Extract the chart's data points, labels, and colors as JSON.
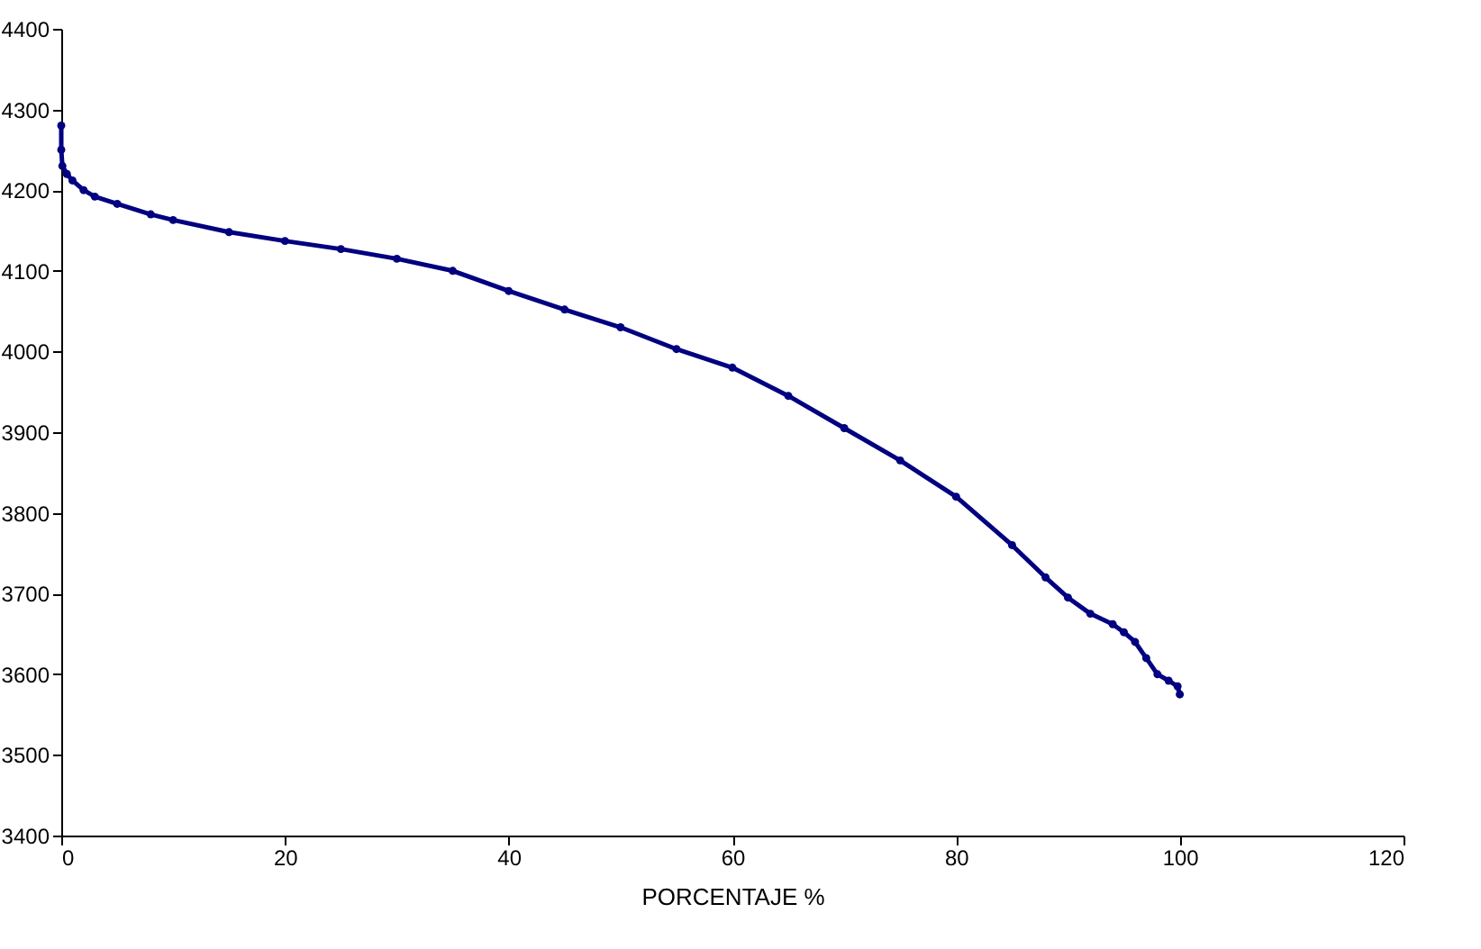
{
  "chart_data": {
    "type": "line",
    "xlabel": "PORCENTAJE %",
    "marker": "circle",
    "grid": false,
    "legend": false,
    "series": [
      {
        "color": "#000080",
        "x": [
          0,
          0,
          0.1,
          0.5,
          1,
          2,
          3,
          5,
          8,
          10,
          15,
          20,
          25,
          30,
          35,
          40,
          45,
          50,
          55,
          60,
          65,
          70,
          75,
          80,
          85,
          88,
          90,
          92,
          94,
          95,
          96,
          97,
          98,
          99,
          99.8,
          100
        ],
        "values": [
          4280,
          4250,
          4230,
          4220,
          4212,
          4200,
          4192,
          4183,
          4170,
          4163,
          4148,
          4137,
          4127,
          4115,
          4100,
          4075,
          4052,
          4030,
          4003,
          3980,
          3945,
          3905,
          3865,
          3820,
          3760,
          3720,
          3695,
          3675,
          3662,
          3652,
          3640,
          3620,
          3600,
          3592,
          3585,
          3575
        ]
      }
    ],
    "xlim": [
      0,
      120
    ],
    "xticks": [
      0,
      20,
      40,
      60,
      80,
      100,
      120
    ],
    "ylim": [
      3400,
      4400
    ],
    "yticks": [
      3400,
      3500,
      3600,
      3700,
      3800,
      3900,
      4000,
      4100,
      4200,
      4300,
      4400
    ]
  }
}
